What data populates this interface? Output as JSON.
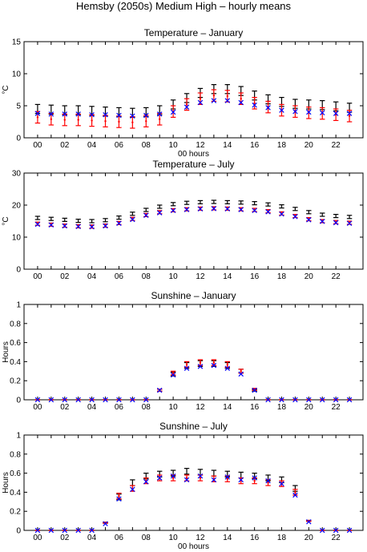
{
  "figure_title": "Hemsby (2050s) Medium High – hourly means",
  "colors": {
    "black": "#000000",
    "red": "#ff0000",
    "blue": "#0000ff"
  },
  "chart_data": [
    {
      "type": "scatter",
      "title": "Temperature – January",
      "xlabel": "00 hours",
      "ylabel": "°C",
      "xlim": [
        -1,
        24
      ],
      "ylim": [
        0,
        15
      ],
      "xticks": [
        "00",
        "02",
        "04",
        "06",
        "08",
        "10",
        "12",
        "14",
        "16",
        "18",
        "20",
        "22"
      ],
      "yticks": [
        "0",
        "5",
        "10",
        "15"
      ],
      "grid": false,
      "series": [
        {
          "color": "black",
          "marker": "errorbar",
          "values": [
            4.5,
            4.4,
            4.3,
            4.3,
            4.2,
            4.1,
            4.0,
            3.9,
            4.0,
            4.3,
            5.2,
            6.2,
            7.0,
            7.6,
            7.6,
            7.3,
            6.6,
            6.0,
            5.6,
            5.3,
            5.2,
            5.1,
            4.9,
            4.7
          ],
          "err": [
            0.7,
            0.7,
            0.7,
            0.7,
            0.7,
            0.7,
            0.7,
            0.7,
            0.7,
            0.7,
            0.7,
            0.7,
            0.7,
            0.7,
            0.7,
            0.7,
            0.7,
            0.7,
            0.7,
            0.7,
            0.7,
            0.7,
            0.7,
            0.7
          ]
        },
        {
          "color": "red",
          "marker": "errorbar",
          "values": [
            3.2,
            2.9,
            2.8,
            2.8,
            2.7,
            2.6,
            2.5,
            2.4,
            2.6,
            2.9,
            4.1,
            5.2,
            6.1,
            6.6,
            6.5,
            6.1,
            5.4,
            4.8,
            4.3,
            4.1,
            3.9,
            3.8,
            3.6,
            3.4
          ],
          "err": [
            0.9,
            0.9,
            0.9,
            0.9,
            0.9,
            0.9,
            0.9,
            0.9,
            0.9,
            0.9,
            0.9,
            0.9,
            0.9,
            0.9,
            0.9,
            0.9,
            0.9,
            0.9,
            0.9,
            0.9,
            0.9,
            0.9,
            0.9,
            0.9
          ]
        },
        {
          "color": "blue",
          "marker": "x",
          "values": [
            3.8,
            3.7,
            3.7,
            3.7,
            3.6,
            3.6,
            3.5,
            3.4,
            3.5,
            3.7,
            4.0,
            4.8,
            5.5,
            5.8,
            5.8,
            5.5,
            5.1,
            4.7,
            4.3,
            4.1,
            4.0,
            3.9,
            3.8,
            3.8
          ]
        }
      ]
    },
    {
      "type": "scatter",
      "title": "Temperature – July",
      "xlabel": "",
      "ylabel": "°C",
      "xlim": [
        -1,
        24
      ],
      "ylim": [
        0,
        30
      ],
      "xticks": [
        "00",
        "02",
        "04",
        "06",
        "08",
        "10",
        "12",
        "14",
        "16",
        "18",
        "20",
        "22"
      ],
      "yticks": [
        "0",
        "10",
        "20",
        "30"
      ],
      "grid": false,
      "series": [
        {
          "color": "black",
          "marker": "errorbar",
          "values": [
            16.0,
            15.7,
            15.4,
            15.1,
            15.0,
            15.3,
            16.1,
            17.3,
            18.5,
            19.5,
            20.3,
            20.7,
            20.9,
            21.0,
            20.9,
            20.8,
            20.6,
            20.2,
            19.6,
            18.8,
            17.8,
            17.0,
            16.6,
            16.3
          ],
          "err": [
            0.5,
            0.5,
            0.5,
            0.5,
            0.5,
            0.5,
            0.5,
            0.5,
            0.5,
            0.5,
            0.5,
            0.5,
            0.5,
            0.5,
            0.5,
            0.5,
            0.5,
            0.5,
            0.5,
            0.5,
            0.5,
            0.5,
            0.5,
            0.5
          ]
        },
        {
          "color": "red",
          "marker": "errorbar",
          "values": [
            14.2,
            13.9,
            13.6,
            13.4,
            13.3,
            13.6,
            14.4,
            15.7,
            16.9,
            17.8,
            18.4,
            18.7,
            18.9,
            19.0,
            18.9,
            18.7,
            18.5,
            18.1,
            17.4,
            16.6,
            15.6,
            15.0,
            14.7,
            14.5
          ],
          "err": [
            0.5,
            0.5,
            0.5,
            0.5,
            0.5,
            0.5,
            0.5,
            0.5,
            0.5,
            0.5,
            0.5,
            0.5,
            0.5,
            0.5,
            0.5,
            0.5,
            0.5,
            0.5,
            0.5,
            0.5,
            0.5,
            0.5,
            0.5,
            0.5
          ]
        },
        {
          "color": "blue",
          "marker": "x",
          "values": [
            14.0,
            13.8,
            13.5,
            13.3,
            13.2,
            13.5,
            14.3,
            15.5,
            16.8,
            17.6,
            18.3,
            18.6,
            18.8,
            18.9,
            18.8,
            18.6,
            18.3,
            17.9,
            17.2,
            16.4,
            15.4,
            14.9,
            14.5,
            14.3
          ]
        }
      ]
    },
    {
      "type": "scatter",
      "title": "Sunshine – January",
      "xlabel": "",
      "ylabel": "Hours",
      "xlim": [
        -1,
        24
      ],
      "ylim": [
        0,
        1
      ],
      "xticks": [
        "00",
        "02",
        "04",
        "06",
        "08",
        "10",
        "12",
        "14",
        "16",
        "18",
        "20",
        "22"
      ],
      "yticks": [
        "0",
        "0.2",
        "0.4",
        "0.6",
        "0.8",
        "1"
      ],
      "grid": false,
      "series": [
        {
          "color": "black",
          "marker": "errorbar",
          "values": [
            0,
            0,
            0,
            0,
            0,
            0,
            0,
            0,
            0,
            0.1,
            0.27,
            0.36,
            0.38,
            0.38,
            0.36,
            0.3,
            0.1,
            0,
            0,
            0,
            0,
            0,
            0,
            0
          ],
          "err": [
            0,
            0,
            0,
            0,
            0,
            0,
            0,
            0,
            0,
            0.01,
            0.02,
            0.03,
            0.03,
            0.03,
            0.03,
            0.02,
            0.01,
            0,
            0,
            0,
            0,
            0,
            0,
            0
          ]
        },
        {
          "color": "red",
          "marker": "errorbar",
          "values": [
            0,
            0,
            0,
            0,
            0,
            0,
            0,
            0,
            0,
            0.1,
            0.28,
            0.37,
            0.39,
            0.39,
            0.37,
            0.3,
            0.11,
            0,
            0,
            0,
            0,
            0,
            0,
            0
          ],
          "err": [
            0,
            0,
            0,
            0,
            0,
            0,
            0,
            0,
            0,
            0.01,
            0.02,
            0.03,
            0.03,
            0.03,
            0.03,
            0.02,
            0.01,
            0,
            0,
            0,
            0,
            0,
            0,
            0
          ]
        },
        {
          "color": "blue",
          "marker": "x",
          "values": [
            0,
            0,
            0,
            0,
            0,
            0,
            0,
            0,
            0,
            0.1,
            0.26,
            0.33,
            0.35,
            0.36,
            0.33,
            0.27,
            0.1,
            0,
            0,
            0,
            0,
            0,
            0,
            0
          ]
        }
      ]
    },
    {
      "type": "scatter",
      "title": "Sunshine – July",
      "xlabel": "00 hours",
      "ylabel": "Hours",
      "xlim": [
        -1,
        24
      ],
      "ylim": [
        0,
        1
      ],
      "xticks": [
        "00",
        "02",
        "04",
        "06",
        "08",
        "10",
        "12",
        "14",
        "16",
        "18",
        "20",
        "22"
      ],
      "yticks": [
        "0",
        "0.2",
        "0.4",
        "0.6",
        "0.8",
        "1"
      ],
      "grid": false,
      "series": [
        {
          "color": "black",
          "marker": "errorbar",
          "values": [
            0,
            0,
            0,
            0,
            0,
            0.08,
            0.35,
            0.5,
            0.57,
            0.59,
            0.6,
            0.62,
            0.61,
            0.6,
            0.59,
            0.58,
            0.57,
            0.55,
            0.53,
            0.44,
            0.1,
            0,
            0,
            0
          ],
          "err": [
            0,
            0,
            0,
            0,
            0,
            0.005,
            0.03,
            0.03,
            0.03,
            0.03,
            0.03,
            0.03,
            0.03,
            0.03,
            0.03,
            0.03,
            0.03,
            0.03,
            0.03,
            0.03,
            0.005,
            0,
            0,
            0
          ]
        },
        {
          "color": "red",
          "marker": "errorbar",
          "values": [
            0,
            0,
            0,
            0,
            0,
            0.08,
            0.36,
            0.44,
            0.52,
            0.55,
            0.55,
            0.55,
            0.55,
            0.54,
            0.54,
            0.52,
            0.52,
            0.5,
            0.49,
            0.4,
            0.1,
            0,
            0,
            0
          ],
          "err": [
            0,
            0,
            0,
            0,
            0,
            0.005,
            0.03,
            0.03,
            0.03,
            0.03,
            0.03,
            0.03,
            0.03,
            0.03,
            0.03,
            0.03,
            0.03,
            0.03,
            0.03,
            0.03,
            0.005,
            0,
            0,
            0
          ]
        },
        {
          "color": "blue",
          "marker": "x",
          "values": [
            0,
            0,
            0,
            0,
            0,
            0.07,
            0.33,
            0.43,
            0.51,
            0.55,
            0.57,
            0.53,
            0.57,
            0.53,
            0.56,
            0.53,
            0.55,
            0.52,
            0.49,
            0.37,
            0.09,
            0,
            0,
            0
          ]
        }
      ]
    }
  ]
}
